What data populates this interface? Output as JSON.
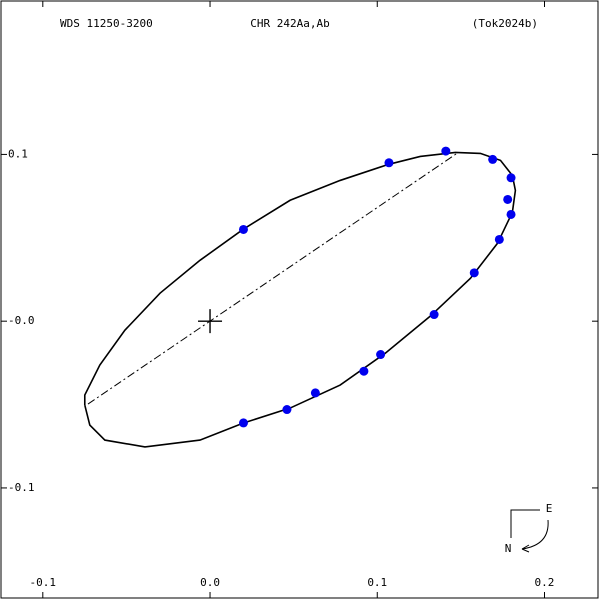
{
  "chart_data": {
    "type": "scatter",
    "header": [
      "WDS 11250-3200",
      "CHR 242Aa,Ab",
      "(Tok2024b)"
    ],
    "xlim": [
      -0.125,
      0.232
    ],
    "ylim": [
      -0.166,
      0.192
    ],
    "xticks": [
      -0.1,
      {
        "value": 0,
        "label": "0.0"
      },
      0.1,
      0.2
    ],
    "yticks": [
      -0.1,
      {
        "value": 0,
        "label": "-0.0"
      },
      0.1
    ],
    "orbit": {
      "color": "#000000",
      "x": [
        -0.0749,
        -0.0719,
        -0.0629,
        -0.0389,
        -0.006,
        0.0198,
        0.0479,
        0.0778,
        0.1048,
        0.1317,
        0.1557,
        0.1719,
        0.1808,
        0.1826,
        0.1808,
        0.1737,
        0.1617,
        0.1467,
        0.1257,
        0.1066,
        0.0778,
        0.0479,
        0.0198,
        -0.006,
        -0.0299,
        -0.0509,
        -0.0659,
        -0.0749,
        -0.0749
      ],
      "y": [
        -0.0503,
        -0.0623,
        -0.0713,
        -0.0754,
        -0.0713,
        -0.0611,
        -0.0521,
        -0.0383,
        -0.0192,
        0.003,
        0.0257,
        0.0467,
        0.0653,
        0.0784,
        0.0874,
        0.0964,
        0.1006,
        0.1012,
        0.0988,
        0.094,
        0.0844,
        0.0725,
        0.0551,
        0.0365,
        0.0168,
        -0.0054,
        -0.0263,
        -0.0443,
        -0.0503
      ]
    },
    "node_line": {
      "color": "#000000",
      "x": [
        -0.073,
        0.1485
      ],
      "y": [
        -0.0497,
        0.1012
      ]
    },
    "observations": {
      "color": "#0000ee",
      "x": [
        0.02,
        0.107,
        0.141,
        0.169,
        0.18,
        0.178,
        0.18,
        0.173,
        0.158,
        0.134,
        0.102,
        0.092,
        0.063,
        0.046,
        0.02
      ],
      "y": [
        0.055,
        0.095,
        0.102,
        0.097,
        0.086,
        0.073,
        0.064,
        0.049,
        0.029,
        0.004,
        -0.02,
        -0.03,
        -0.043,
        -0.053,
        -0.061
      ]
    },
    "compass": {
      "east": "E",
      "north": "N"
    }
  }
}
